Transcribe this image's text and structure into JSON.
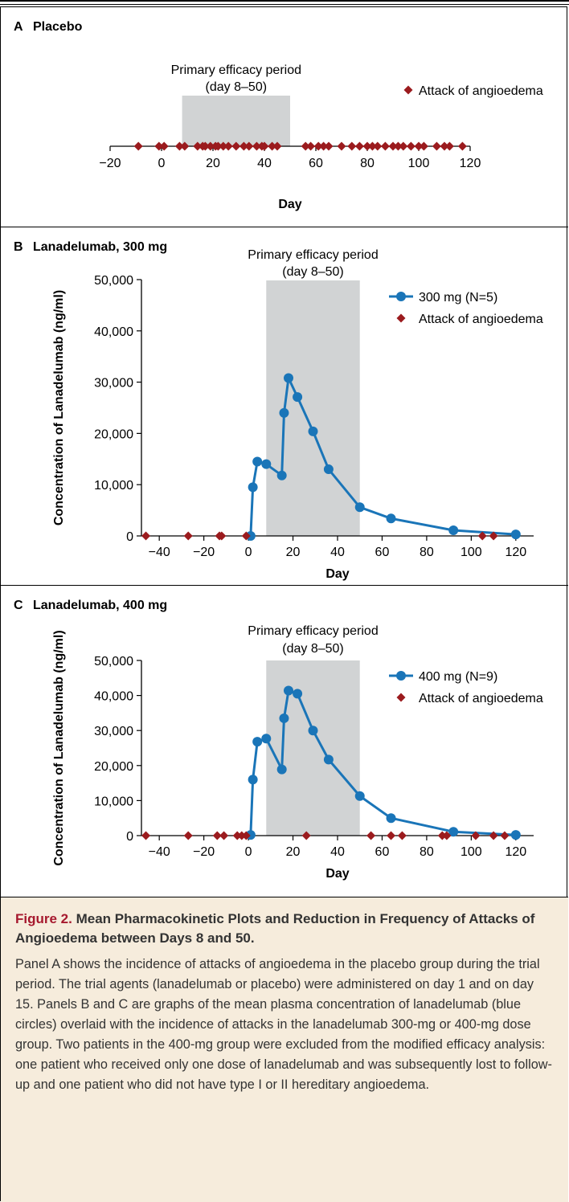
{
  "chart_data": [
    {
      "type": "scatter",
      "panel_label": "A",
      "title": "Placebo",
      "xlabel": "Day",
      "ylabel": "",
      "xlim": [
        -20,
        120
      ],
      "xticks": [
        -20,
        0,
        20,
        40,
        60,
        80,
        100,
        120
      ],
      "shaded_region": {
        "x": [
          8,
          50
        ],
        "label_line1": "Primary efficacy period",
        "label_line2": "(day 8–50)"
      },
      "legend": {
        "position": "top-right",
        "entries": [
          {
            "name": "Attack of angioedema",
            "marker": "diamond",
            "color": "#9b1b1e"
          }
        ]
      },
      "attacks": [
        -9,
        -1,
        1,
        7,
        9,
        14,
        16,
        17,
        19,
        21,
        22,
        24,
        26,
        29,
        32,
        34,
        37,
        39,
        40,
        43,
        45,
        56,
        58,
        61,
        63,
        65,
        70,
        74,
        77,
        80,
        82,
        84,
        87,
        90,
        92,
        94,
        97,
        100,
        102,
        107,
        110,
        112,
        117
      ]
    },
    {
      "type": "line",
      "panel_label": "B",
      "title": "Lanadelumab, 300 mg",
      "xlabel": "Day",
      "ylabel": "Concentration of Lanadelumab (ng/ml)",
      "xlim": [
        -48,
        128
      ],
      "ylim": [
        0,
        50000
      ],
      "xticks": [
        -40,
        -20,
        0,
        20,
        40,
        60,
        80,
        100,
        120
      ],
      "yticks": [
        0,
        10000,
        20000,
        30000,
        40000,
        50000
      ],
      "ytick_labels": [
        "0",
        "10,000",
        "20,000",
        "30,000",
        "40,000",
        "50,000"
      ],
      "shaded_region": {
        "x": [
          8,
          50
        ],
        "label_line1": "Primary efficacy period",
        "label_line2": "(day 8–50)"
      },
      "legend": {
        "position": "top-right",
        "entries": [
          {
            "name": "300 mg (N=5)",
            "marker": "circle-line",
            "color": "#1a75b8"
          },
          {
            "name": "Attack of angioedema",
            "marker": "diamond",
            "color": "#9b1b1e"
          }
        ]
      },
      "series": [
        {
          "name": "300 mg (N=5)",
          "x": [
            1,
            2,
            4,
            8,
            15,
            16,
            18,
            22,
            29,
            36,
            50,
            64,
            92,
            120
          ],
          "y": [
            0,
            9500,
            14500,
            14000,
            11800,
            24000,
            30800,
            27100,
            20400,
            13000,
            5600,
            3400,
            1100,
            300
          ]
        }
      ],
      "attacks": [
        -46,
        -27,
        -13,
        -12,
        -1,
        105,
        110
      ]
    },
    {
      "type": "line",
      "panel_label": "C",
      "title": "Lanadelumab, 400 mg",
      "xlabel": "Day",
      "ylabel": "Concentration of Lanadelumab (ng/ml)",
      "xlim": [
        -48,
        128
      ],
      "ylim": [
        0,
        50000
      ],
      "xticks": [
        -40,
        -20,
        0,
        20,
        40,
        60,
        80,
        100,
        120
      ],
      "yticks": [
        0,
        10000,
        20000,
        30000,
        40000,
        50000
      ],
      "ytick_labels": [
        "0",
        "10,000",
        "20,000",
        "30,000",
        "40,000",
        "50,000"
      ],
      "shaded_region": {
        "x": [
          8,
          50
        ],
        "label_line1": "Primary efficacy period",
        "label_line2": "(day 8–50)"
      },
      "legend": {
        "position": "top-right",
        "entries": [
          {
            "name": "400 mg (N=9)",
            "marker": "circle-line",
            "color": "#1a75b8"
          },
          {
            "name": "Attack of angioedema",
            "marker": "diamond",
            "color": "#9b1b1e"
          }
        ]
      },
      "series": [
        {
          "name": "400 mg (N=9)",
          "x": [
            1,
            2,
            4,
            8,
            15,
            16,
            18,
            22,
            29,
            36,
            50,
            64,
            92,
            120
          ],
          "y": [
            200,
            16000,
            26800,
            27700,
            18900,
            33500,
            41400,
            40500,
            30000,
            21700,
            11300,
            5000,
            1100,
            200
          ]
        }
      ],
      "attacks": [
        -46,
        -27,
        -14,
        -11,
        -5,
        -3,
        -1,
        26,
        55,
        64,
        69,
        87,
        89,
        102,
        110,
        115
      ]
    }
  ],
  "caption": {
    "figure_label": "Figure 2.",
    "title_rest": "Mean Pharmacokinetic Plots and Reduction in Frequency of Attacks of Angioedema between Days 8 and 50.",
    "body": "Panel A shows the incidence of attacks of angioedema in the placebo group during the trial period. The trial agents (lanadelumab or placebo) were administered on day 1 and on day 15. Panels B and C are graphs of the mean plasma concentration of lanadelumab (blue circles) overlaid with the incidence of attacks in the lanadelumab 300-mg or 400-mg dose group. Two patients in the 400-mg group were excluded from the modified efficacy analysis: one patient who received only one dose of lanadelumab and was subsequently lost to follow-up and one patient who did not have type I or II hereditary angioedema."
  },
  "colors": {
    "line": "#1a75b8",
    "attack": "#9b1b1e",
    "shade": "#d1d3d4",
    "caption_bg": "#f6ecdc",
    "caption_title": "#a6192e"
  }
}
